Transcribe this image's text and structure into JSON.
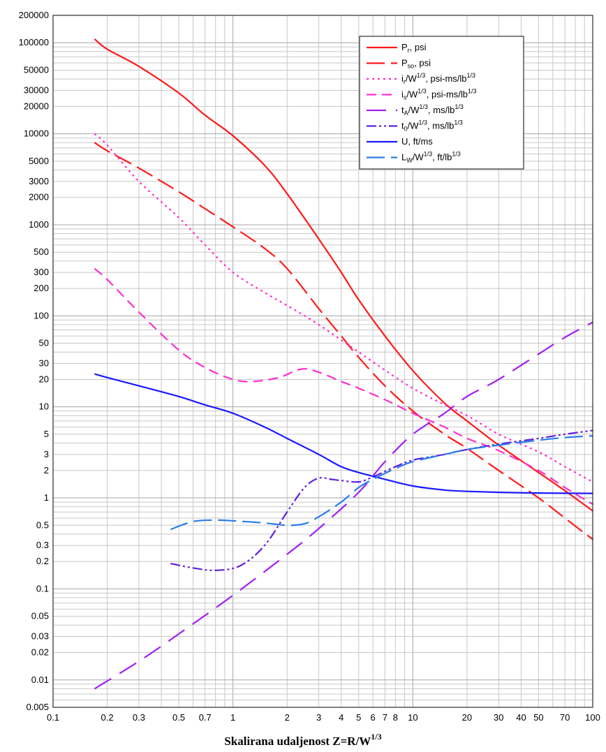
{
  "chart_data": {
    "type": "line",
    "xscale": "log",
    "yscale": "log",
    "xlim": [
      0.1,
      100
    ],
    "ylim": [
      0.005,
      200000
    ],
    "grid": true,
    "legend_position": "top-right",
    "xlabel": {
      "main": "Skalirana udaljenost   Z=R/W",
      "sup": "1/3"
    },
    "x_ticks": [
      {
        "v": 0.1,
        "label": "0.1"
      },
      {
        "v": 0.2,
        "label": "0.2"
      },
      {
        "v": 0.3,
        "label": "0.3"
      },
      {
        "v": 0.5,
        "label": "0.5"
      },
      {
        "v": 0.7,
        "label": "0.7"
      },
      {
        "v": 1,
        "label": "1"
      },
      {
        "v": 2,
        "label": "2"
      },
      {
        "v": 3,
        "label": "3"
      },
      {
        "v": 4,
        "label": "4"
      },
      {
        "v": 5,
        "label": "5"
      },
      {
        "v": 6,
        "label": "6"
      },
      {
        "v": 7,
        "label": "7"
      },
      {
        "v": 8,
        "label": "8"
      },
      {
        "v": 10,
        "label": "10"
      },
      {
        "v": 20,
        "label": "20"
      },
      {
        "v": 30,
        "label": "30"
      },
      {
        "v": 40,
        "label": "40"
      },
      {
        "v": 50,
        "label": "50"
      },
      {
        "v": 70,
        "label": "70"
      },
      {
        "v": 100,
        "label": "100"
      }
    ],
    "y_ticks": [
      {
        "v": 200000,
        "label": "200000"
      },
      {
        "v": 100000,
        "label": "100000"
      },
      {
        "v": 50000,
        "label": "50000"
      },
      {
        "v": 30000,
        "label": "30000"
      },
      {
        "v": 20000,
        "label": "20000"
      },
      {
        "v": 10000,
        "label": "10000"
      },
      {
        "v": 5000,
        "label": "5000"
      },
      {
        "v": 3000,
        "label": "3000"
      },
      {
        "v": 2000,
        "label": "2000"
      },
      {
        "v": 1000,
        "label": "1000"
      },
      {
        "v": 500,
        "label": "500"
      },
      {
        "v": 300,
        "label": "300"
      },
      {
        "v": 200,
        "label": "200"
      },
      {
        "v": 100,
        "label": "100"
      },
      {
        "v": 50,
        "label": "50"
      },
      {
        "v": 30,
        "label": "30"
      },
      {
        "v": 20,
        "label": "20"
      },
      {
        "v": 10,
        "label": "10"
      },
      {
        "v": 5,
        "label": "5"
      },
      {
        "v": 3,
        "label": "3"
      },
      {
        "v": 2,
        "label": "2"
      },
      {
        "v": 1,
        "label": "1"
      },
      {
        "v": 0.5,
        "label": "0.5"
      },
      {
        "v": 0.3,
        "label": "0.3"
      },
      {
        "v": 0.2,
        "label": "0.2"
      },
      {
        "v": 0.1,
        "label": "0.1"
      },
      {
        "v": 0.05,
        "label": "0.05"
      },
      {
        "v": 0.03,
        "label": "0.03"
      },
      {
        "v": 0.02,
        "label": "0.02"
      },
      {
        "v": 0.01,
        "label": "0.01"
      },
      {
        "v": 0.005,
        "label": "0.005"
      }
    ],
    "series": [
      {
        "id": "pr",
        "legend": [
          {
            "t": "P"
          },
          {
            "t": "r",
            "sub": true
          },
          {
            "t": ", psi"
          }
        ],
        "color": "#ff1a1a",
        "dash": "solid",
        "points": [
          [
            0.17,
            110000
          ],
          [
            0.2,
            85000
          ],
          [
            0.3,
            55000
          ],
          [
            0.5,
            28000
          ],
          [
            0.7,
            16000
          ],
          [
            1,
            9500
          ],
          [
            1.5,
            4500
          ],
          [
            2,
            2200
          ],
          [
            3,
            700
          ],
          [
            4,
            300
          ],
          [
            5,
            150
          ],
          [
            7,
            60
          ],
          [
            10,
            25
          ],
          [
            15,
            11
          ],
          [
            20,
            7
          ],
          [
            30,
            3.8
          ],
          [
            50,
            1.9
          ],
          [
            70,
            1.2
          ],
          [
            100,
            0.72
          ]
        ]
      },
      {
        "id": "pso",
        "legend": [
          {
            "t": "P"
          },
          {
            "t": "so",
            "sub": true
          },
          {
            "t": ", psi"
          }
        ],
        "color": "#ff1a1a",
        "dash": "26 9",
        "points": [
          [
            0.17,
            8000
          ],
          [
            0.2,
            6500
          ],
          [
            0.3,
            4200
          ],
          [
            0.5,
            2300
          ],
          [
            0.7,
            1500
          ],
          [
            1,
            950
          ],
          [
            1.5,
            550
          ],
          [
            2,
            330
          ],
          [
            3,
            120
          ],
          [
            4,
            60
          ],
          [
            5,
            35
          ],
          [
            7,
            17
          ],
          [
            10,
            9
          ],
          [
            15,
            5
          ],
          [
            20,
            3.5
          ],
          [
            30,
            2
          ],
          [
            50,
            1
          ],
          [
            70,
            0.6
          ],
          [
            100,
            0.35
          ]
        ]
      },
      {
        "id": "ir",
        "legend": [
          {
            "t": "i"
          },
          {
            "t": "r",
            "sub": true
          },
          {
            "t": "/W"
          },
          {
            "t": "1/3",
            "sup": true
          },
          {
            "t": ", psi-ms/lb"
          },
          {
            "t": "1/3",
            "sup": true
          }
        ],
        "color": "#ff2fd0",
        "dash": "3 5",
        "points": [
          [
            0.17,
            10000
          ],
          [
            0.2,
            7500
          ],
          [
            0.3,
            3000
          ],
          [
            0.5,
            1200
          ],
          [
            0.7,
            600
          ],
          [
            1,
            300
          ],
          [
            1.5,
            180
          ],
          [
            2,
            130
          ],
          [
            3,
            80
          ],
          [
            5,
            40
          ],
          [
            10,
            16
          ],
          [
            20,
            8
          ],
          [
            30,
            5
          ],
          [
            50,
            3.2
          ],
          [
            70,
            2.2
          ],
          [
            100,
            1.5
          ]
        ]
      },
      {
        "id": "is",
        "legend": [
          {
            "t": "i"
          },
          {
            "t": "s",
            "sub": true
          },
          {
            "t": "/W"
          },
          {
            "t": "1/3",
            "sup": true
          },
          {
            "t": ", psi-ms/lb"
          },
          {
            "t": "1/3",
            "sup": true
          }
        ],
        "color": "#ff2fd0",
        "dash": "14 8",
        "points": [
          [
            0.17,
            330
          ],
          [
            0.2,
            250
          ],
          [
            0.3,
            110
          ],
          [
            0.5,
            42
          ],
          [
            0.7,
            27
          ],
          [
            1,
            20
          ],
          [
            1.3,
            19
          ],
          [
            1.8,
            21
          ],
          [
            2.4,
            26
          ],
          [
            3,
            24
          ],
          [
            4,
            19
          ],
          [
            5,
            16
          ],
          [
            7,
            12
          ],
          [
            10,
            8.5
          ],
          [
            15,
            6
          ],
          [
            20,
            4.5
          ],
          [
            30,
            3.3
          ],
          [
            50,
            2
          ],
          [
            70,
            1.3
          ],
          [
            100,
            0.85
          ]
        ]
      },
      {
        "id": "ta",
        "legend": [
          {
            "t": "t"
          },
          {
            "t": "A",
            "sub": true
          },
          {
            "t": "/W"
          },
          {
            "t": "1/3",
            "sup": true
          },
          {
            "t": ", ms/lb"
          },
          {
            "t": "1/3",
            "sup": true
          }
        ],
        "color": "#a020f0",
        "dash": "28 14",
        "points": [
          [
            0.17,
            0.008
          ],
          [
            0.3,
            0.016
          ],
          [
            0.5,
            0.032
          ],
          [
            1,
            0.085
          ],
          [
            2,
            0.24
          ],
          [
            3,
            0.46
          ],
          [
            5,
            1.15
          ],
          [
            7,
            2.5
          ],
          [
            10,
            5
          ],
          [
            15,
            8.5
          ],
          [
            20,
            13
          ],
          [
            30,
            20
          ],
          [
            50,
            38
          ],
          [
            70,
            58
          ],
          [
            100,
            85
          ]
        ]
      },
      {
        "id": "t0",
        "legend": [
          {
            "t": "t"
          },
          {
            "t": "0",
            "sub": true
          },
          {
            "t": "/W"
          },
          {
            "t": "1/3",
            "sup": true
          },
          {
            "t": ", ms/lb"
          },
          {
            "t": "1/3",
            "sup": true
          }
        ],
        "color": "#6020e0",
        "dash": "14 4 3 4 3 4",
        "points": [
          [
            0.45,
            0.19
          ],
          [
            0.6,
            0.17
          ],
          [
            0.8,
            0.16
          ],
          [
            1.1,
            0.18
          ],
          [
            1.5,
            0.3
          ],
          [
            2,
            0.7
          ],
          [
            2.5,
            1.3
          ],
          [
            3,
            1.65
          ],
          [
            3.5,
            1.6
          ],
          [
            4,
            1.55
          ],
          [
            5,
            1.5
          ],
          [
            6,
            1.7
          ],
          [
            8,
            2.2
          ],
          [
            10,
            2.6
          ],
          [
            15,
            3
          ],
          [
            20,
            3.4
          ],
          [
            30,
            3.9
          ],
          [
            50,
            4.5
          ],
          [
            70,
            5
          ],
          [
            100,
            5.5
          ]
        ]
      },
      {
        "id": "u",
        "legend": [
          {
            "t": "U, ft/ms"
          }
        ],
        "color": "#1a1aff",
        "dash": "solid",
        "points": [
          [
            0.17,
            23
          ],
          [
            0.2,
            21
          ],
          [
            0.3,
            17
          ],
          [
            0.5,
            13
          ],
          [
            0.7,
            10.5
          ],
          [
            1,
            8.5
          ],
          [
            1.5,
            6
          ],
          [
            2,
            4.5
          ],
          [
            3,
            3
          ],
          [
            4,
            2.2
          ],
          [
            5,
            1.9
          ],
          [
            7,
            1.6
          ],
          [
            10,
            1.35
          ],
          [
            15,
            1.22
          ],
          [
            20,
            1.18
          ],
          [
            30,
            1.15
          ],
          [
            50,
            1.13
          ],
          [
            100,
            1.12
          ]
        ]
      },
      {
        "id": "lw",
        "legend": [
          {
            "t": "L"
          },
          {
            "t": "W",
            "sub": true
          },
          {
            "t": "/W"
          },
          {
            "t": "1/3",
            "sup": true
          },
          {
            "t": ", ft/lb"
          },
          {
            "t": "1/3",
            "sup": true
          }
        ],
        "color": "#2a7de8",
        "dash": "26 9",
        "points": [
          [
            0.45,
            0.45
          ],
          [
            0.6,
            0.55
          ],
          [
            0.8,
            0.57
          ],
          [
            1,
            0.56
          ],
          [
            1.5,
            0.53
          ],
          [
            2,
            0.5
          ],
          [
            2.5,
            0.52
          ],
          [
            3,
            0.62
          ],
          [
            4,
            0.9
          ],
          [
            5,
            1.3
          ],
          [
            6,
            1.6
          ],
          [
            8,
            2.1
          ],
          [
            10,
            2.5
          ],
          [
            15,
            3
          ],
          [
            20,
            3.4
          ],
          [
            30,
            3.8
          ],
          [
            50,
            4.3
          ],
          [
            70,
            4.6
          ],
          [
            100,
            4.8
          ]
        ]
      }
    ]
  }
}
